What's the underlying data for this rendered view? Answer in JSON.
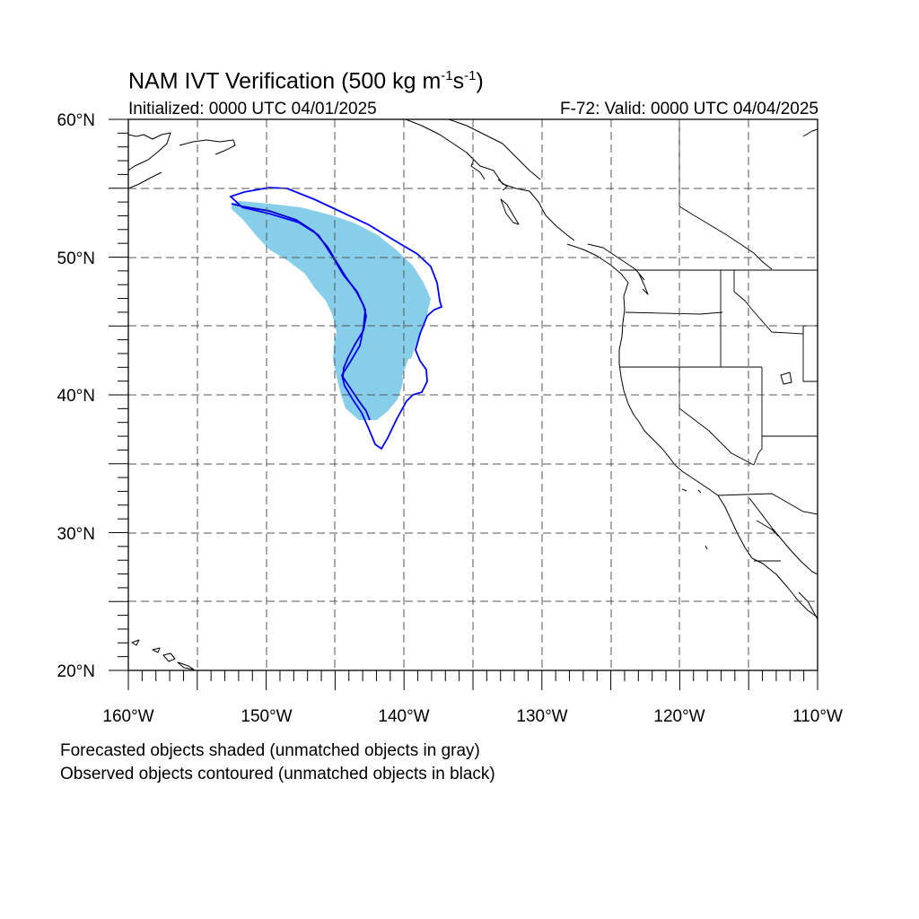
{
  "title": {
    "main": "NAM IVT Verification (500 kg m",
    "exp1": "-1",
    "mid": "s",
    "exp2": "-1",
    "end": ")"
  },
  "subtitle": {
    "initialized": "Initialized: 0000 UTC 04/01/2025",
    "valid": "F-72: Valid: 0000 UTC 04/04/2025"
  },
  "notes": {
    "forecast": "Forecasted objects shaded (unmatched objects in gray)",
    "observed": "Observed objects contoured (unmatched objects in black)"
  },
  "map": {
    "lon_range": [
      -160,
      -110
    ],
    "lat_range": [
      20,
      60
    ],
    "grid_spacing_deg": 5,
    "lon_labels": [
      "160°W",
      "150°W",
      "140°W",
      "130°W",
      "120°W",
      "110°W"
    ],
    "lat_labels": [
      "20°N",
      "30°N",
      "40°N",
      "50°N",
      "60°N"
    ],
    "colors": {
      "forecast_fill": "#87ceeb",
      "observed_contour": "#0000ff",
      "observed_inner_contour": "#0000cd",
      "coastline": "#000000",
      "grid": "#555555"
    }
  }
}
